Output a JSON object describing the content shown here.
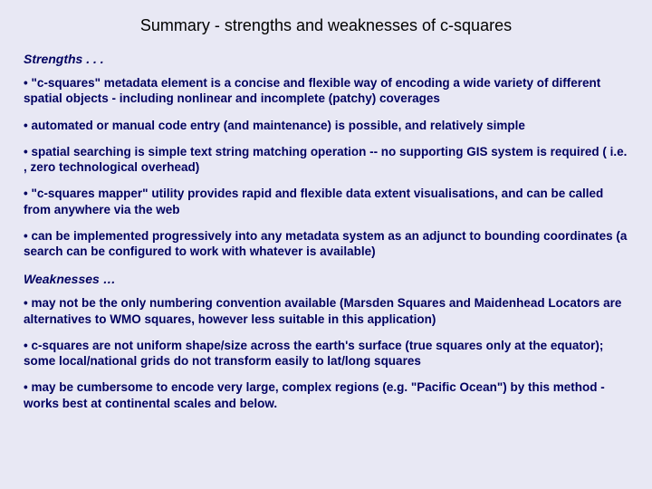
{
  "title": "Summary - strengths and weaknesses of c-squares",
  "strengths": {
    "heading": "Strengths . . .",
    "bullets": [
      "• \"c-squares\" metadata element is a concise and flexible way of encoding a wide variety of different spatial objects - including nonlinear and incomplete (patchy) coverages",
      "• automated or manual code entry (and maintenance) is possible, and relatively simple",
      "• spatial searching is simple text string matching operation -- no supporting GIS system is required ( i.e. , zero technological overhead)",
      "• \"c-squares mapper\" utility provides rapid and flexible data extent visualisations, and can be called from anywhere via the web",
      "• can be implemented progressively into any metadata system as an adjunct to bounding coordinates (a search can be configured to work with whatever is available)"
    ]
  },
  "weaknesses": {
    "heading": "Weaknesses …",
    "bullets": [
      "• may not be the only numbering convention available (Marsden Squares and Maidenhead Locators are alternatives to WMO squares, however less suitable in this application)",
      "• c-squares are not uniform shape/size across the earth's surface (true squares only at the equator); some local/national grids do not transform easily to lat/long squares",
      "• may be cumbersome to encode very large, complex regions (e.g. \"Pacific Ocean\") by this method - works best at continental scales and below."
    ]
  },
  "colors": {
    "background": "#e8e8f4",
    "title_text": "#000000",
    "body_text": "#000060"
  },
  "typography": {
    "title_fontsize": 18,
    "heading_fontsize": 14,
    "body_fontsize": 13.5,
    "body_weight": "bold",
    "heading_style": "italic"
  }
}
